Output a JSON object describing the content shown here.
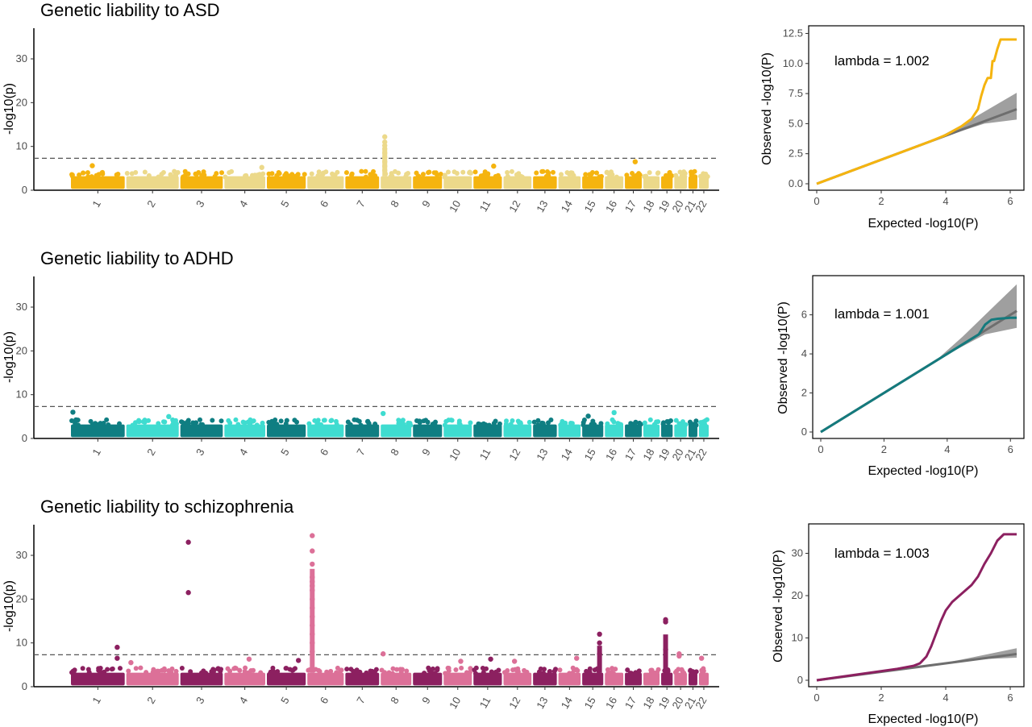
{
  "colors": {
    "asd": [
      "#f5b40f",
      "#ecd98a"
    ],
    "adhd": [
      "#0f7e82",
      "#3fdcd0"
    ],
    "scz": [
      "#8c2060",
      "#dc7098"
    ],
    "threshold": "#555555",
    "ci": "#7f7f7f"
  },
  "chart_data": [
    {
      "type": "scatter",
      "title": "Genetic liability to ASD",
      "ylabel": "-log10(p)",
      "ylim": [
        0,
        37
      ],
      "yticks": [
        0,
        10,
        20,
        30
      ],
      "threshold": 7.3,
      "chromosomes": [
        "1",
        "2",
        "3",
        "4",
        "5",
        "6",
        "7",
        "8",
        "9",
        "10",
        "11",
        "12",
        "13",
        "14",
        "15",
        "16",
        "17",
        "18",
        "19",
        "20",
        "21",
        "22"
      ],
      "chrom_sizes": [
        249,
        243,
        198,
        191,
        182,
        171,
        159,
        145,
        138,
        134,
        135,
        133,
        114,
        107,
        102,
        90,
        83,
        80,
        59,
        64,
        47,
        51
      ],
      "peaks": [
        {
          "chrom": "8",
          "pos": 0.15,
          "points": [
            4.5,
            5.5,
            6.5,
            7.5,
            8.5,
            9.5,
            10.2,
            11,
            12.2
          ]
        },
        {
          "chrom": "1",
          "pos": 0.4,
          "points": [
            5.6
          ]
        },
        {
          "chrom": "17",
          "pos": 0.6,
          "points": [
            6.5
          ]
        },
        {
          "chrom": "11",
          "pos": 0.7,
          "points": [
            5.5
          ]
        },
        {
          "chrom": "4",
          "pos": 0.9,
          "points": [
            5.2
          ]
        }
      ]
    },
    {
      "type": "line",
      "title": "",
      "xlabel": "Expected -log10(P)",
      "ylabel": "Observed -log10(P)",
      "annotation": "lambda = 1.002",
      "xlim": [
        0,
        6.3
      ],
      "ylim": [
        0,
        12.8
      ],
      "xticks": [
        0,
        2,
        4,
        6
      ],
      "yticks": [
        0.0,
        2.5,
        5.0,
        7.5,
        10.0,
        12.5
      ],
      "ytick_labels": [
        "0.0",
        "2.5",
        "5.0",
        "7.5",
        "10.0",
        "12.5"
      ],
      "observed": [
        [
          0,
          0
        ],
        [
          3.5,
          3.5
        ],
        [
          4.0,
          4.05
        ],
        [
          4.5,
          4.8
        ],
        [
          4.8,
          5.4
        ],
        [
          5.0,
          6.2
        ],
        [
          5.1,
          7.3
        ],
        [
          5.2,
          8.2
        ],
        [
          5.3,
          8.8
        ],
        [
          5.4,
          8.8
        ],
        [
          5.45,
          10.2
        ],
        [
          5.5,
          10.2
        ],
        [
          5.6,
          11.2
        ],
        [
          5.7,
          12.0
        ],
        [
          6.2,
          12.0
        ]
      ]
    },
    {
      "type": "scatter",
      "title": "Genetic liability to ADHD",
      "ylabel": "-log10(p)",
      "ylim": [
        0,
        37
      ],
      "yticks": [
        0,
        10,
        20,
        30
      ],
      "threshold": 7.3,
      "chromosomes": [
        "1",
        "2",
        "3",
        "4",
        "5",
        "6",
        "7",
        "8",
        "9",
        "10",
        "11",
        "12",
        "13",
        "14",
        "15",
        "16",
        "17",
        "18",
        "19",
        "20",
        "21",
        "22"
      ],
      "chrom_sizes": [
        249,
        243,
        198,
        191,
        182,
        171,
        159,
        145,
        138,
        134,
        135,
        133,
        114,
        107,
        102,
        90,
        83,
        80,
        59,
        64,
        47,
        51
      ],
      "peaks": [
        {
          "chrom": "1",
          "pos": 0.05,
          "points": [
            6.0
          ]
        },
        {
          "chrom": "8",
          "pos": 0.1,
          "points": [
            5.7
          ]
        },
        {
          "chrom": "16",
          "pos": 0.5,
          "points": [
            5.9
          ]
        },
        {
          "chrom": "15",
          "pos": 0.3,
          "points": [
            5.1
          ]
        },
        {
          "chrom": "2",
          "pos": 0.8,
          "points": [
            5.0
          ]
        }
      ]
    },
    {
      "type": "line",
      "title": "",
      "xlabel": "Expected -log10(P)",
      "ylabel": "Observed -log10(P)",
      "annotation": "lambda = 1.001",
      "xlim": [
        0,
        6.3
      ],
      "ylim": [
        0,
        7.8
      ],
      "xticks": [
        0,
        2,
        4,
        6
      ],
      "yticks": [
        0,
        2,
        4,
        6
      ],
      "ytick_labels": [
        "0",
        "2",
        "4",
        "6"
      ],
      "observed": [
        [
          0,
          0
        ],
        [
          4.5,
          4.5
        ],
        [
          4.8,
          4.8
        ],
        [
          5.0,
          5.0
        ],
        [
          5.2,
          5.5
        ],
        [
          5.4,
          5.75
        ],
        [
          5.6,
          5.8
        ],
        [
          6.0,
          5.85
        ],
        [
          6.2,
          5.85
        ]
      ]
    },
    {
      "type": "scatter",
      "title": "Genetic liability to schizophrenia",
      "ylabel": "-log10(p)",
      "ylim": [
        0,
        37
      ],
      "yticks": [
        0,
        10,
        20,
        30
      ],
      "threshold": 7.3,
      "chromosomes": [
        "1",
        "2",
        "3",
        "4",
        "5",
        "6",
        "7",
        "8",
        "9",
        "10",
        "11",
        "12",
        "13",
        "14",
        "15",
        "16",
        "17",
        "18",
        "19",
        "20",
        "21",
        "22"
      ],
      "chrom_sizes": [
        249,
        243,
        198,
        191,
        182,
        171,
        159,
        145,
        138,
        134,
        135,
        133,
        114,
        107,
        102,
        90,
        83,
        80,
        59,
        64,
        47,
        51
      ],
      "peaks": [
        {
          "chrom": "6",
          "pos": 0.15,
          "points": [
            8,
            10,
            12,
            14,
            16,
            18,
            20,
            22,
            23,
            24,
            25,
            28,
            31,
            34.5
          ]
        },
        {
          "chrom": "3",
          "pos": 0.2,
          "points": [
            21.5,
            33
          ]
        },
        {
          "chrom": "19",
          "pos": 0.4,
          "points": [
            8.5,
            14.8,
            15.3
          ]
        },
        {
          "chrom": "15",
          "pos": 0.8,
          "points": [
            7.5,
            10,
            12
          ]
        },
        {
          "chrom": "1",
          "pos": 0.85,
          "points": [
            6.5,
            9
          ]
        },
        {
          "chrom": "20",
          "pos": 0.4,
          "points": [
            7,
            7.5
          ]
        },
        {
          "chrom": "8",
          "pos": 0.1,
          "points": [
            7.5
          ]
        },
        {
          "chrom": "14",
          "pos": 0.8,
          "points": [
            6.5
          ]
        },
        {
          "chrom": "11",
          "pos": 0.6,
          "points": [
            6.3
          ]
        },
        {
          "chrom": "4",
          "pos": 0.6,
          "points": [
            6.3
          ]
        },
        {
          "chrom": "2",
          "pos": 0.1,
          "points": [
            5.5
          ]
        },
        {
          "chrom": "12",
          "pos": 0.4,
          "points": [
            5.8
          ]
        },
        {
          "chrom": "10",
          "pos": 0.6,
          "points": [
            5.8
          ]
        },
        {
          "chrom": "5",
          "pos": 0.8,
          "points": [
            6.0
          ]
        },
        {
          "chrom": "22",
          "pos": 0.3,
          "points": [
            6.5
          ]
        }
      ]
    },
    {
      "type": "line",
      "title": "",
      "xlabel": "Expected -log10(P)",
      "ylabel": "Observed -log10(P)",
      "annotation": "lambda = 1.003",
      "xlim": [
        0,
        6.3
      ],
      "ylim": [
        0,
        36
      ],
      "xticks": [
        0,
        2,
        4,
        6
      ],
      "yticks": [
        0,
        10,
        20,
        30
      ],
      "ytick_labels": [
        "0",
        "10",
        "20",
        "30"
      ],
      "observed": [
        [
          0,
          0
        ],
        [
          2.5,
          2.7
        ],
        [
          3.0,
          3.4
        ],
        [
          3.2,
          4.0
        ],
        [
          3.4,
          5.6
        ],
        [
          3.55,
          8
        ],
        [
          3.7,
          11
        ],
        [
          3.85,
          14
        ],
        [
          4.0,
          16.5
        ],
        [
          4.2,
          18.5
        ],
        [
          4.5,
          20.5
        ],
        [
          4.8,
          22.5
        ],
        [
          5.0,
          24.5
        ],
        [
          5.2,
          27.5
        ],
        [
          5.4,
          30
        ],
        [
          5.6,
          33
        ],
        [
          5.8,
          34.5
        ],
        [
          6.2,
          34.5
        ]
      ]
    }
  ]
}
